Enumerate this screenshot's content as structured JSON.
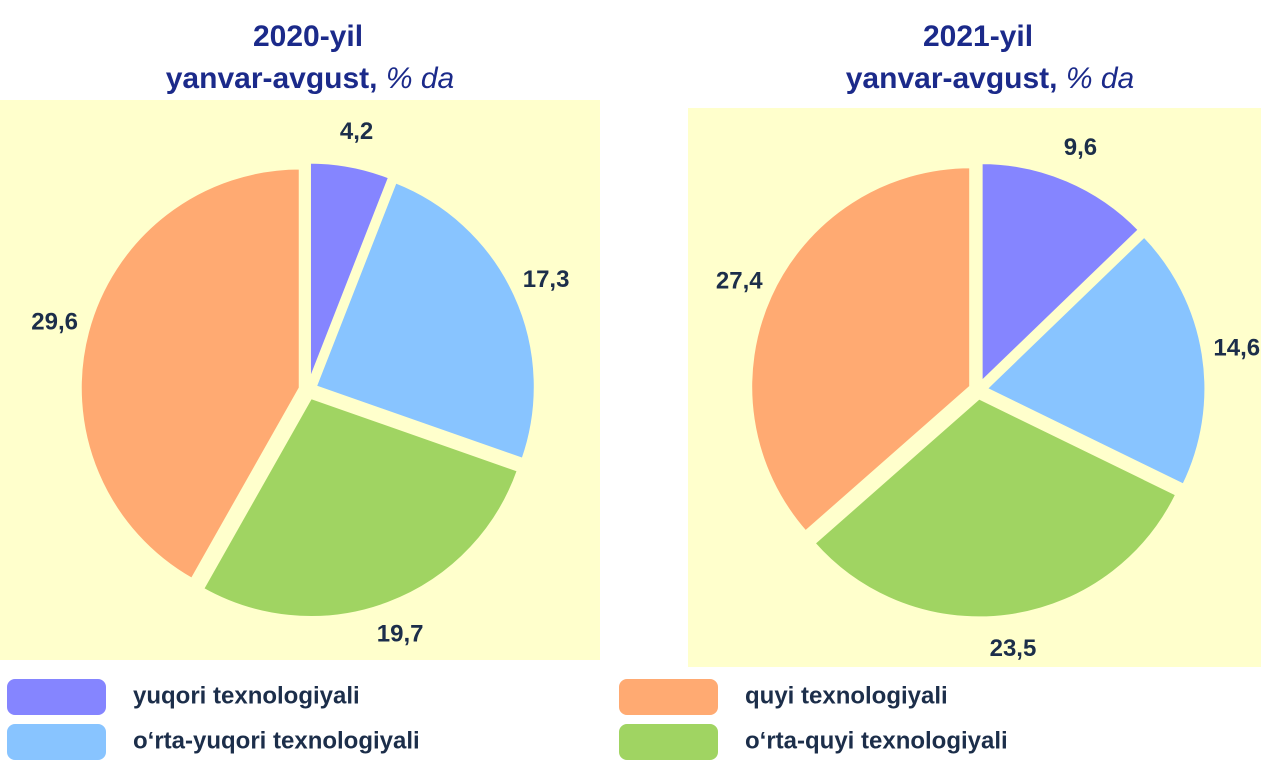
{
  "chart_data": [
    {
      "type": "pie",
      "title": "2020-yil",
      "subtitle": "yanvar-avgust,",
      "unit": "% da",
      "categories": [
        "yuqori texnologiyali",
        "o‘rta-yuqori texnologiyali",
        "o‘rta-quyi texnologiyali",
        "quyi texnologiyali"
      ],
      "values": [
        4.2,
        17.3,
        19.7,
        29.6
      ],
      "value_labels": [
        "4,2",
        "17,3",
        "19,7",
        "29,6"
      ],
      "colors": [
        "#8585ff",
        "#88c4ff",
        "#a0d462",
        "#ffaa72"
      ]
    },
    {
      "type": "pie",
      "title": "2021-yil",
      "subtitle": "yanvar-avgust,",
      "unit": "% da",
      "categories": [
        "yuqori texnologiyali",
        "o‘rta-yuqori texnologiyali",
        "o‘rta-quyi texnologiyali",
        "quyi texnologiyali"
      ],
      "values": [
        9.6,
        14.6,
        23.5,
        27.4
      ],
      "value_labels": [
        "9,6",
        "14,6",
        "23,5",
        "27,4"
      ],
      "colors": [
        "#8585ff",
        "#88c4ff",
        "#a0d462",
        "#ffaa72"
      ]
    }
  ]
}
